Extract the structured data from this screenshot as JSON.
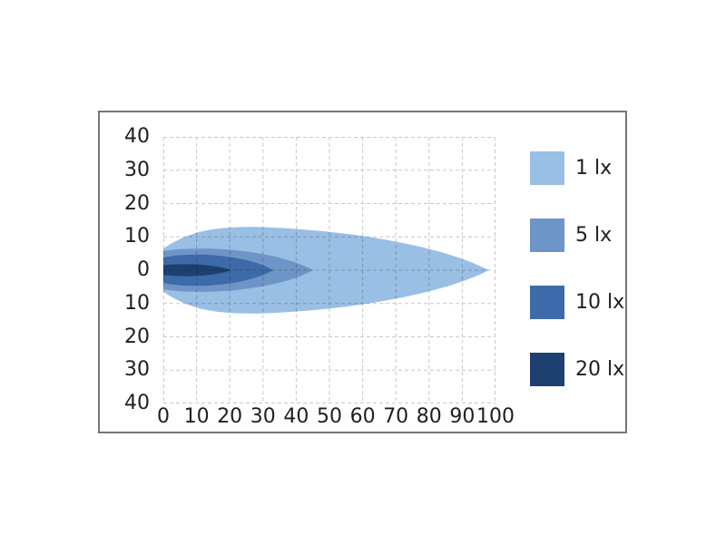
{
  "chart_data": {
    "type": "area",
    "title": "",
    "description": "Isolux light beam pattern diagram: illuminance contour zones (1, 5, 10, 20 lx) plotted over distance, symmetric about the beam axis",
    "x_ticks": [
      "0",
      "10",
      "20",
      "30",
      "40",
      "50",
      "60",
      "70",
      "80",
      "90",
      "100"
    ],
    "y_ticks": [
      "40",
      "30",
      "20",
      "10",
      "0",
      "10",
      "20",
      "30",
      "40"
    ],
    "x_range": [
      0,
      100
    ],
    "y_range": [
      -40,
      40
    ],
    "grid": true,
    "grid_style": "dashed",
    "grid_color": "#c9c9c9",
    "legend_position": "right",
    "series": [
      {
        "name": "1 lx",
        "color": "#99bfe4",
        "tip_x": 98,
        "peak_half_width": 13,
        "left_half_width": 6.5,
        "peak_x": 28
      },
      {
        "name": "5 lx",
        "color": "#6d95c7",
        "tip_x": 45,
        "peak_half_width": 6.5,
        "left_half_width": 5.8,
        "peak_x": 14
      },
      {
        "name": "10 lx",
        "color": "#3d6aa8",
        "tip_x": 33,
        "peak_half_width": 4.7,
        "left_half_width": 3.8,
        "peak_x": 12
      },
      {
        "name": "20 lx",
        "color": "#1d4071",
        "tip_x": 20.5,
        "peak_half_width": 1.8,
        "left_half_width": 1.5,
        "peak_x": 8
      }
    ]
  },
  "legend": {
    "items": [
      {
        "label": "1 lx",
        "color": "#99bfe4"
      },
      {
        "label": "5 lx",
        "color": "#6d95c7"
      },
      {
        "label": "10 lx",
        "color": "#3d6aa8"
      },
      {
        "label": "20 lx",
        "color": "#1d4071"
      }
    ]
  },
  "colors": {
    "frame_border": "#757575",
    "text": "#1f1f1f",
    "background": "#ffffff"
  }
}
